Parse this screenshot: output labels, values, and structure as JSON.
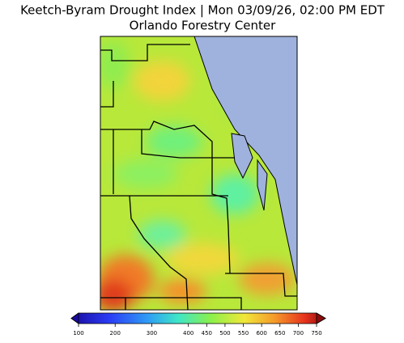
{
  "title": "Keetch-Byram Drought Index | Mon 03/09/26, 02:00 PM EDT",
  "subtitle": "Orlando Forestry Center",
  "colorbar": {
    "lim": [
      100,
      750
    ],
    "ticks": [
      100,
      200,
      300,
      400,
      450,
      500,
      550,
      600,
      650,
      700,
      750
    ]
  }
}
